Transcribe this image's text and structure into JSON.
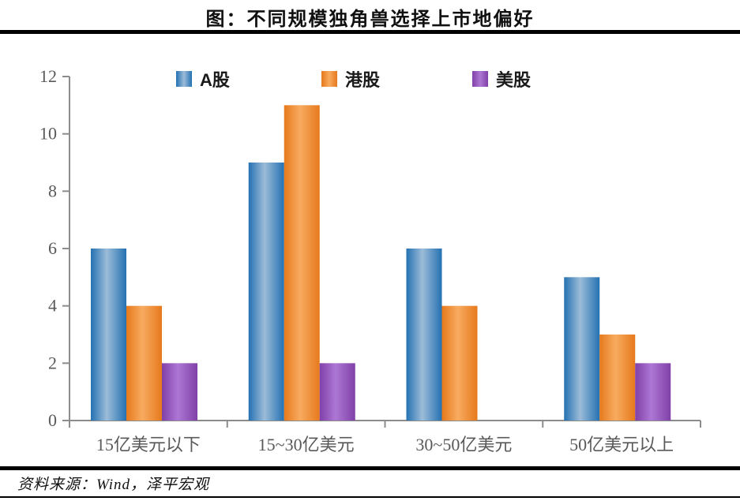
{
  "title": "图：不同规模独角兽选择上市地偏好",
  "source": "资料来源：Wind，泽平宏观",
  "chart_data": {
    "type": "bar",
    "title": "图：不同规模独角兽选择上市地偏好",
    "categories": [
      "15亿美元以下",
      "15~30亿美元",
      "30~50亿美元",
      "50亿美元以上"
    ],
    "series": [
      {
        "name": "A股",
        "values": [
          6,
          9,
          6,
          5
        ],
        "color_edge": "#2471b2",
        "color_mid": "#9cbcd8"
      },
      {
        "name": "港股",
        "values": [
          4,
          11,
          4,
          3
        ],
        "color_edge": "#e6791c",
        "color_mid": "#f8ab60"
      },
      {
        "name": "美股",
        "values": [
          2,
          2,
          0,
          2
        ],
        "color_edge": "#8040a8",
        "color_mid": "#ad77d4"
      }
    ],
    "xlabel": "",
    "ylabel": "",
    "ylim": [
      0,
      12
    ],
    "ytick_step": 2,
    "grid": false,
    "legend_position": "top",
    "axis_color": "#8c8c8c",
    "label_color": "#595959"
  }
}
